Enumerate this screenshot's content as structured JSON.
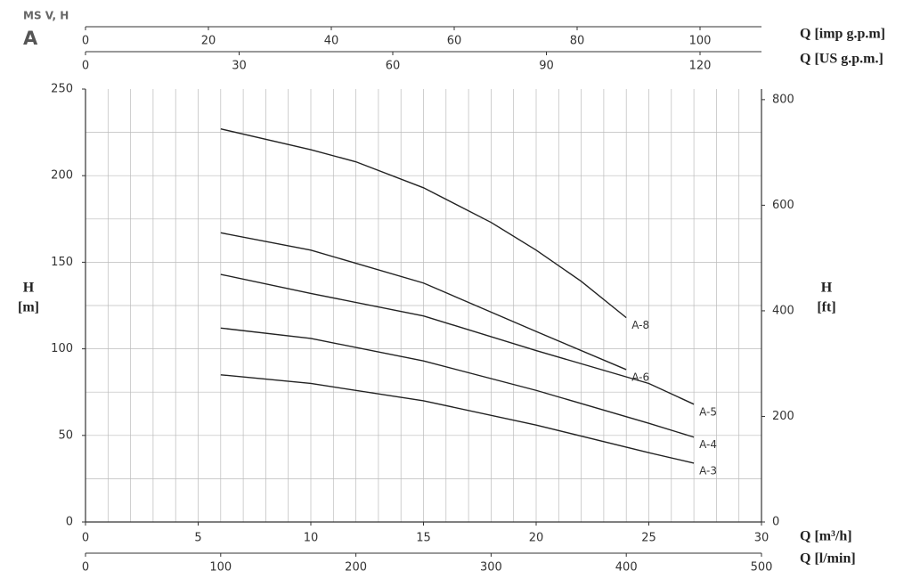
{
  "chart_data": {
    "type": "line",
    "title": "MS V, H",
    "subtitle": "A",
    "x_label": "Q [m³/h]",
    "xlim": [
      0,
      30
    ],
    "xticks": [
      0,
      5,
      10,
      15,
      20,
      25,
      30
    ],
    "y_label": [
      "H",
      "[m]"
    ],
    "ylim": [
      0,
      250
    ],
    "yticks": [
      0,
      50,
      100,
      150,
      200,
      250
    ],
    "y2_label": [
      "H",
      "[ft]"
    ],
    "y2lim": [
      0,
      820
    ],
    "y2ticks": [
      0,
      200,
      400,
      600,
      800
    ],
    "grid": true,
    "x_grid_step": 1,
    "y_grid_step": 25,
    "extra_x_axes": [
      {
        "label": "Q [l/min]",
        "position": "bottom",
        "lim": [
          0,
          500
        ],
        "ticks": [
          0,
          100,
          200,
          300,
          400,
          500
        ]
      },
      {
        "label": "Q [imp g.p.m]",
        "position": "top",
        "lim": [
          0,
          110
        ],
        "ticks": [
          0,
          20,
          40,
          60,
          80,
          100
        ]
      },
      {
        "label": "Q [US g.p.m.]",
        "position": "top",
        "lim": [
          0,
          132
        ],
        "ticks": [
          0,
          30,
          60,
          90,
          120
        ]
      }
    ],
    "series": [
      {
        "name": "A-8",
        "color": "#222222",
        "x": [
          6,
          10,
          12,
          15,
          18,
          20,
          22,
          24
        ],
        "values": [
          227,
          215,
          208,
          193,
          173,
          157,
          139,
          118
        ]
      },
      {
        "name": "A-6",
        "color": "#222222",
        "x": [
          6,
          10,
          15,
          20,
          24
        ],
        "values": [
          167,
          157,
          138,
          110,
          88
        ]
      },
      {
        "name": "A-5",
        "color": "#222222",
        "x": [
          6,
          10,
          15,
          20,
          25,
          27
        ],
        "values": [
          143,
          132,
          119,
          99,
          80,
          68
        ]
      },
      {
        "name": "A-4",
        "color": "#222222",
        "x": [
          6,
          10,
          15,
          20,
          25,
          27
        ],
        "values": [
          112,
          106,
          93,
          76,
          57,
          49
        ]
      },
      {
        "name": "A-3",
        "color": "#222222",
        "x": [
          6,
          10,
          15,
          20,
          25,
          27
        ],
        "values": [
          85,
          80,
          70,
          56,
          40,
          34
        ]
      }
    ]
  }
}
